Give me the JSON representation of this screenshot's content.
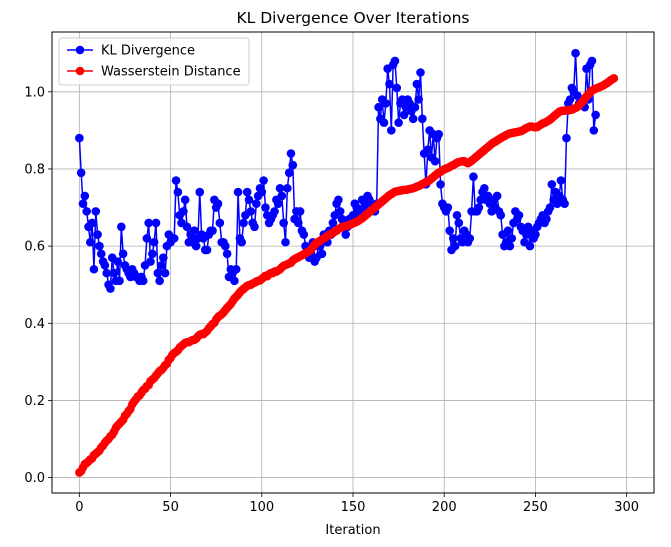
{
  "chart_data": {
    "type": "line",
    "title": "KL Divergence Over Iterations",
    "xlabel": "Iteration",
    "ylabel": "",
    "xlim": [
      -15,
      315
    ],
    "ylim": [
      -0.04,
      1.155
    ],
    "xticks": [
      0,
      50,
      100,
      150,
      200,
      250,
      300
    ],
    "xtick_labels": [
      "0",
      "50",
      "100",
      "150",
      "200",
      "250",
      "300"
    ],
    "yticks": [
      0.0,
      0.2,
      0.4,
      0.6,
      0.8,
      1.0
    ],
    "ytick_labels": [
      "0.0",
      "0.2",
      "0.4",
      "0.6",
      "0.8",
      "1.0"
    ],
    "grid": true,
    "legend_position": "top-left",
    "series": [
      {
        "name": "KL Divergence",
        "color": "#0000ff",
        "marker": "circle",
        "x_start": 0,
        "x_step": 1,
        "values": [
          0.88,
          0.79,
          0.71,
          0.73,
          0.69,
          0.65,
          0.61,
          0.66,
          0.54,
          0.69,
          0.63,
          0.6,
          0.58,
          0.56,
          0.55,
          0.53,
          0.5,
          0.49,
          0.57,
          0.53,
          0.51,
          0.56,
          0.51,
          0.65,
          0.58,
          0.55,
          0.54,
          0.53,
          0.52,
          0.54,
          0.53,
          0.52,
          0.52,
          0.51,
          0.52,
          0.51,
          0.55,
          0.62,
          0.66,
          0.56,
          0.58,
          0.61,
          0.66,
          0.53,
          0.51,
          0.55,
          0.57,
          0.53,
          0.6,
          0.63,
          0.61,
          0.62,
          0.62,
          0.77,
          0.74,
          0.68,
          0.66,
          0.69,
          0.72,
          0.65,
          0.61,
          0.63,
          0.61,
          0.64,
          0.6,
          0.62,
          0.74,
          0.63,
          0.62,
          0.59,
          0.59,
          0.63,
          0.64,
          0.64,
          0.72,
          0.7,
          0.71,
          0.66,
          0.61,
          0.61,
          0.6,
          0.58,
          0.52,
          0.54,
          0.53,
          0.51,
          0.54,
          0.74,
          0.62,
          0.61,
          0.66,
          0.68,
          0.74,
          0.72,
          0.69,
          0.66,
          0.65,
          0.71,
          0.73,
          0.75,
          0.74,
          0.77,
          0.7,
          0.68,
          0.66,
          0.67,
          0.68,
          0.69,
          0.72,
          0.71,
          0.75,
          0.73,
          0.66,
          0.61,
          0.75,
          0.79,
          0.84,
          0.81,
          0.67,
          0.69,
          0.66,
          0.69,
          0.64,
          0.63,
          0.6,
          0.58,
          0.57,
          0.58,
          0.61,
          0.56,
          0.57,
          0.6,
          0.6,
          0.58,
          0.63,
          0.62,
          0.61,
          0.64,
          0.63,
          0.66,
          0.68,
          0.71,
          0.72,
          0.69,
          0.67,
          0.66,
          0.63,
          0.65,
          0.67,
          0.66,
          0.68,
          0.71,
          0.7,
          0.69,
          0.68,
          0.72,
          0.7,
          0.71,
          0.73,
          0.72,
          0.71,
          0.7,
          0.69,
          0.71,
          0.96,
          0.93,
          0.98,
          0.92,
          0.97,
          1.06,
          1.02,
          0.9,
          1.07,
          1.08,
          1.01,
          0.92,
          0.97,
          0.98,
          0.94,
          0.96,
          0.98,
          0.97,
          0.95,
          0.93,
          0.96,
          1.02,
          0.98,
          1.05,
          0.93,
          0.84,
          0.76,
          0.85,
          0.9,
          0.83,
          0.89,
          0.82,
          0.88,
          0.89,
          0.76,
          0.71,
          0.7,
          0.69,
          0.7,
          0.64,
          0.59,
          0.62,
          0.6,
          0.68,
          0.66,
          0.62,
          0.61,
          0.64,
          0.63,
          0.61,
          0.62,
          0.69,
          0.78,
          0.69,
          0.69,
          0.7,
          0.72,
          0.74,
          0.75,
          0.72,
          0.73,
          0.71,
          0.69,
          0.72,
          0.7,
          0.73,
          0.69,
          0.68,
          0.63,
          0.6,
          0.61,
          0.64,
          0.6,
          0.62,
          0.66,
          0.69,
          0.67,
          0.68,
          0.65,
          0.64,
          0.61,
          0.63,
          0.65,
          0.6,
          0.64,
          0.62,
          0.63,
          0.65,
          0.66,
          0.67,
          0.68,
          0.66,
          0.67,
          0.69,
          0.7,
          0.76,
          0.72,
          0.74,
          0.71,
          0.73,
          0.77,
          0.72,
          0.71,
          0.88,
          0.97,
          0.98,
          1.01,
          1.0,
          1.1,
          0.99,
          0.97,
          0.97,
          0.98,
          0.96,
          1.06,
          0.98,
          1.07,
          1.08,
          0.9,
          0.94
        ]
      },
      {
        "name": "Wasserstein Distance",
        "color": "#ff0000",
        "marker": "circle",
        "x_start": 0,
        "x_step": 1,
        "values": [
          0.013,
          0.017,
          0.026,
          0.035,
          0.038,
          0.042,
          0.047,
          0.05,
          0.058,
          0.062,
          0.066,
          0.07,
          0.078,
          0.083,
          0.09,
          0.096,
          0.1,
          0.107,
          0.111,
          0.119,
          0.129,
          0.135,
          0.14,
          0.145,
          0.15,
          0.16,
          0.165,
          0.172,
          0.178,
          0.19,
          0.197,
          0.203,
          0.21,
          0.213,
          0.22,
          0.227,
          0.23,
          0.237,
          0.24,
          0.25,
          0.254,
          0.258,
          0.264,
          0.27,
          0.276,
          0.279,
          0.284,
          0.291,
          0.295,
          0.305,
          0.31,
          0.318,
          0.323,
          0.326,
          0.33,
          0.337,
          0.341,
          0.345,
          0.349,
          0.351,
          0.351,
          0.354,
          0.356,
          0.357,
          0.36,
          0.366,
          0.37,
          0.372,
          0.372,
          0.376,
          0.38,
          0.387,
          0.392,
          0.398,
          0.401,
          0.41,
          0.416,
          0.42,
          0.423,
          0.428,
          0.434,
          0.44,
          0.445,
          0.45,
          0.457,
          0.464,
          0.469,
          0.474,
          0.48,
          0.485,
          0.489,
          0.493,
          0.497,
          0.499,
          0.5,
          0.503,
          0.505,
          0.508,
          0.51,
          0.511,
          0.515,
          0.519,
          0.523,
          0.522,
          0.527,
          0.53,
          0.53,
          0.534,
          0.534,
          0.537,
          0.54,
          0.545,
          0.549,
          0.551,
          0.553,
          0.555,
          0.557,
          0.563,
          0.566,
          0.569,
          0.571,
          0.574,
          0.576,
          0.579,
          0.582,
          0.584,
          0.587,
          0.591,
          0.597,
          0.603,
          0.609,
          0.61,
          0.614,
          0.617,
          0.62,
          0.623,
          0.627,
          0.63,
          0.632,
          0.634,
          0.638,
          0.64,
          0.644,
          0.647,
          0.649,
          0.651,
          0.652,
          0.653,
          0.655,
          0.657,
          0.659,
          0.661,
          0.663,
          0.666,
          0.669,
          0.672,
          0.676,
          0.68,
          0.684,
          0.688,
          0.692,
          0.696,
          0.7,
          0.704,
          0.708,
          0.712,
          0.716,
          0.72,
          0.724,
          0.728,
          0.732,
          0.735,
          0.738,
          0.741,
          0.742,
          0.743,
          0.744,
          0.745,
          0.746,
          0.746,
          0.747,
          0.748,
          0.749,
          0.75,
          0.752,
          0.754,
          0.756,
          0.758,
          0.761,
          0.763,
          0.766,
          0.768,
          0.771,
          0.775,
          0.779,
          0.783,
          0.787,
          0.79,
          0.793,
          0.796,
          0.799,
          0.801,
          0.803,
          0.805,
          0.808,
          0.81,
          0.813,
          0.816,
          0.818,
          0.819,
          0.82,
          0.82,
          0.817,
          0.815,
          0.818,
          0.821,
          0.825,
          0.829,
          0.833,
          0.837,
          0.841,
          0.845,
          0.849,
          0.853,
          0.857,
          0.861,
          0.865,
          0.868,
          0.871,
          0.874,
          0.877,
          0.88,
          0.883,
          0.885,
          0.888,
          0.89,
          0.892,
          0.893,
          0.894,
          0.895,
          0.896,
          0.897,
          0.898,
          0.9,
          0.903,
          0.906,
          0.908,
          0.91,
          0.91,
          0.909,
          0.908,
          0.909,
          0.912,
          0.915,
          0.918,
          0.92,
          0.922,
          0.925,
          0.928,
          0.932,
          0.936,
          0.94,
          0.944,
          0.948,
          0.95,
          0.951,
          0.951,
          0.952,
          0.952,
          0.953,
          0.954,
          0.956,
          0.958,
          0.961,
          0.965,
          0.97,
          0.976,
          0.982,
          0.988,
          0.993,
          0.998,
          1.003,
          1.006,
          1.008,
          1.01,
          1.012,
          1.014,
          1.016,
          1.019,
          1.022,
          1.025,
          1.029,
          1.032,
          1.035
        ]
      }
    ]
  }
}
